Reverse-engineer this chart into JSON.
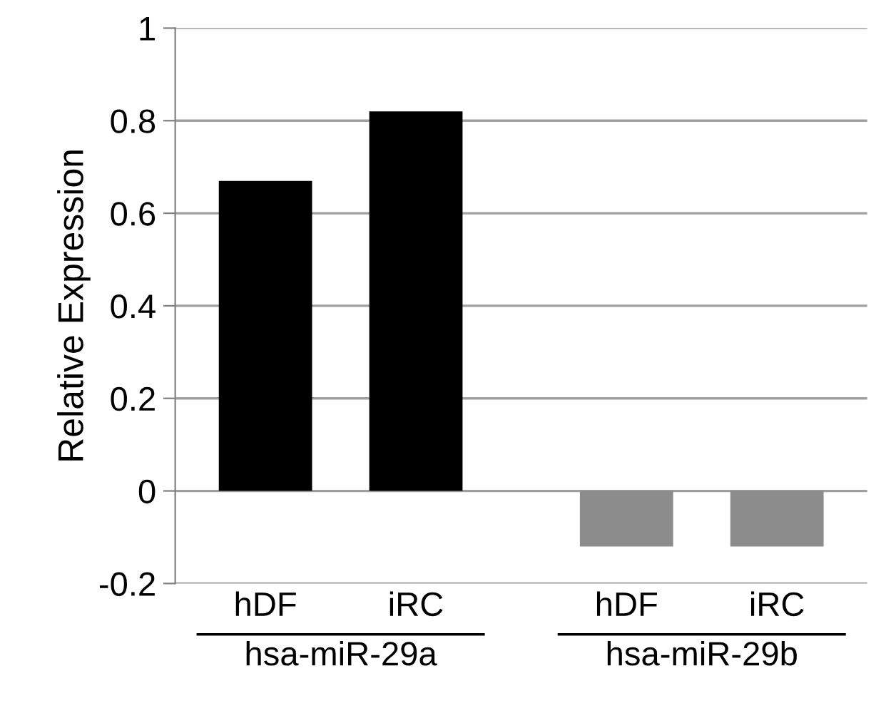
{
  "chart_data": {
    "type": "bar",
    "ylabel": "Relative Expression",
    "categories": [
      "hDF",
      "iRC",
      "hDF",
      "iRC"
    ],
    "values": [
      0.67,
      0.82,
      -0.12,
      -0.12
    ],
    "colors": [
      "#000000",
      "#000000",
      "#8c8c8c",
      "#8c8c8c"
    ],
    "ylim": [
      -0.2,
      1
    ],
    "yticks": [
      -0.2,
      0,
      0.2,
      0.4,
      0.6,
      0.8,
      1
    ],
    "grid": "y",
    "annotations": [
      "hsa-miR-29a",
      "hsa-miR-29b"
    ]
  }
}
